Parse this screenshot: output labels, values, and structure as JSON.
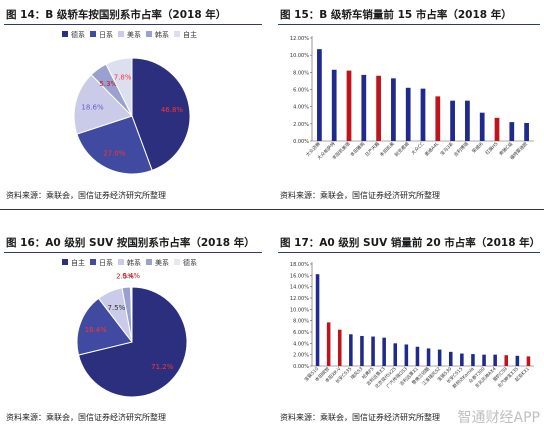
{
  "panels": [
    {
      "title": "图 14：B 级轿车按国别系市占率（2018 年）",
      "source": "资料来源：乘联会，国信证券经济研究所整理",
      "chart_data": {
        "type": "pie",
        "legend": [
          "德系",
          "日系",
          "美系",
          "韩系",
          "自主"
        ],
        "legend_position": "top",
        "values": [
          46.8,
          27.0,
          18.6,
          5.3,
          7.8
        ],
        "labels": [
          "46.8%",
          "27.0%",
          "18.6%",
          "5.3%",
          "7.8%"
        ],
        "colors": [
          "#2b2f7d",
          "#3f4aa0",
          "#c9cbe8",
          "#9aa0cf",
          "#dcdff0"
        ]
      }
    },
    {
      "title": "图 15：B 级轿车销量前 15 市占率（2018 年）",
      "source": "资料来源：乘联会，国信证券经济研究所整理",
      "chart_data": {
        "type": "bar",
        "categories": [
          "大众迈腾",
          "大众帕萨特",
          "丰田凯美瑞",
          "本田雅阁",
          "日产天籁",
          "本田凯美",
          "别克君威",
          "大众CC",
          "奥迪A4L",
          "宝马3系",
          "吉利博瑞",
          "荣威i6",
          "红旗H5",
          "奔驰C级",
          "福特蒙迪欧"
        ],
        "values": [
          10.7,
          8.3,
          8.2,
          7.7,
          7.6,
          7.3,
          6.2,
          6.1,
          5.2,
          4.7,
          4.7,
          3.3,
          2.7,
          2.2,
          2.1
        ],
        "colors": [
          "#1f2a8c",
          "#1f2a8c",
          "#c0141c",
          "#1f2a8c",
          "#c0141c",
          "#1f2a8c",
          "#1f2a8c",
          "#1f2a8c",
          "#c0141c",
          "#1f2a8c",
          "#1f2a8c",
          "#1f2a8c",
          "#c0141c",
          "#1f2a8c",
          "#1f2a8c"
        ],
        "y_ticks": [
          "0.00%",
          "2.00%",
          "4.00%",
          "6.00%",
          "8.00%",
          "10.00%",
          "12.00%"
        ],
        "ylim": [
          0,
          12
        ]
      }
    },
    {
      "title": "图 16：A0 级别 SUV 按国别系市占率（2018 年）",
      "source": "资料来源：乘联会，国信证券经济研究所整理",
      "chart_data": {
        "type": "pie",
        "legend": [
          "自主",
          "日系",
          "韩系",
          "美系",
          "德系"
        ],
        "legend_position": "top",
        "values": [
          71.2,
          18.4,
          7.5,
          2.5,
          0.4
        ],
        "labels": [
          "71.2%",
          "18.4%",
          "7.5%",
          "2.5%",
          "0.4%"
        ],
        "colors": [
          "#2b2f7d",
          "#3f4aa0",
          "#c9cbe8",
          "#9aa0cf",
          "#e6e7f3"
        ]
      }
    },
    {
      "title": "图 17：A0 级别 SUV 销量前 20 市占率（2018 年）",
      "source": "资料来源：乘联会，国信证券经济研究所整理",
      "chart_data": {
        "type": "bar",
        "categories": [
          "宝骏510",
          "本田缤智",
          "本田XR-V",
          "长安CS35",
          "瑞风S3",
          "哈弗F5",
          "吉利远景X3",
          "北京现代ix25",
          "广汽传祺GS3",
          "吉利远景X1",
          "雪佛兰创酷",
          "江淮瑞风S2",
          "宝骏530",
          "长安CS15",
          "斯柯达Kamiq",
          "众泰T300",
          "东风风神AX4",
          "猎豹CS9",
          "北汽绅宝X35",
          "起亚KX1"
        ],
        "values": [
          16.2,
          7.7,
          6.4,
          5.6,
          5.3,
          5.2,
          5.0,
          4.0,
          3.8,
          3.4,
          3.1,
          2.9,
          2.5,
          2.2,
          2.1,
          2.0,
          2.0,
          1.9,
          1.8,
          1.7
        ],
        "colors": [
          "#1f2a8c",
          "#c0141c",
          "#c0141c",
          "#1f2a8c",
          "#1f2a8c",
          "#1f2a8c",
          "#1f2a8c",
          "#1f2a8c",
          "#1f2a8c",
          "#1f2a8c",
          "#1f2a8c",
          "#1f2a8c",
          "#1f2a8c",
          "#1f2a8c",
          "#1f2a8c",
          "#1f2a8c",
          "#1f2a8c",
          "#c0141c",
          "#1f2a8c",
          "#c0141c"
        ],
        "y_ticks": [
          "0.00%",
          "2.00%",
          "4.00%",
          "6.00%",
          "8.00%",
          "10.00%",
          "12.00%",
          "14.00%",
          "16.00%",
          "18.00%"
        ],
        "ylim": [
          0,
          18
        ]
      }
    }
  ],
  "watermark": "智通财经APP"
}
